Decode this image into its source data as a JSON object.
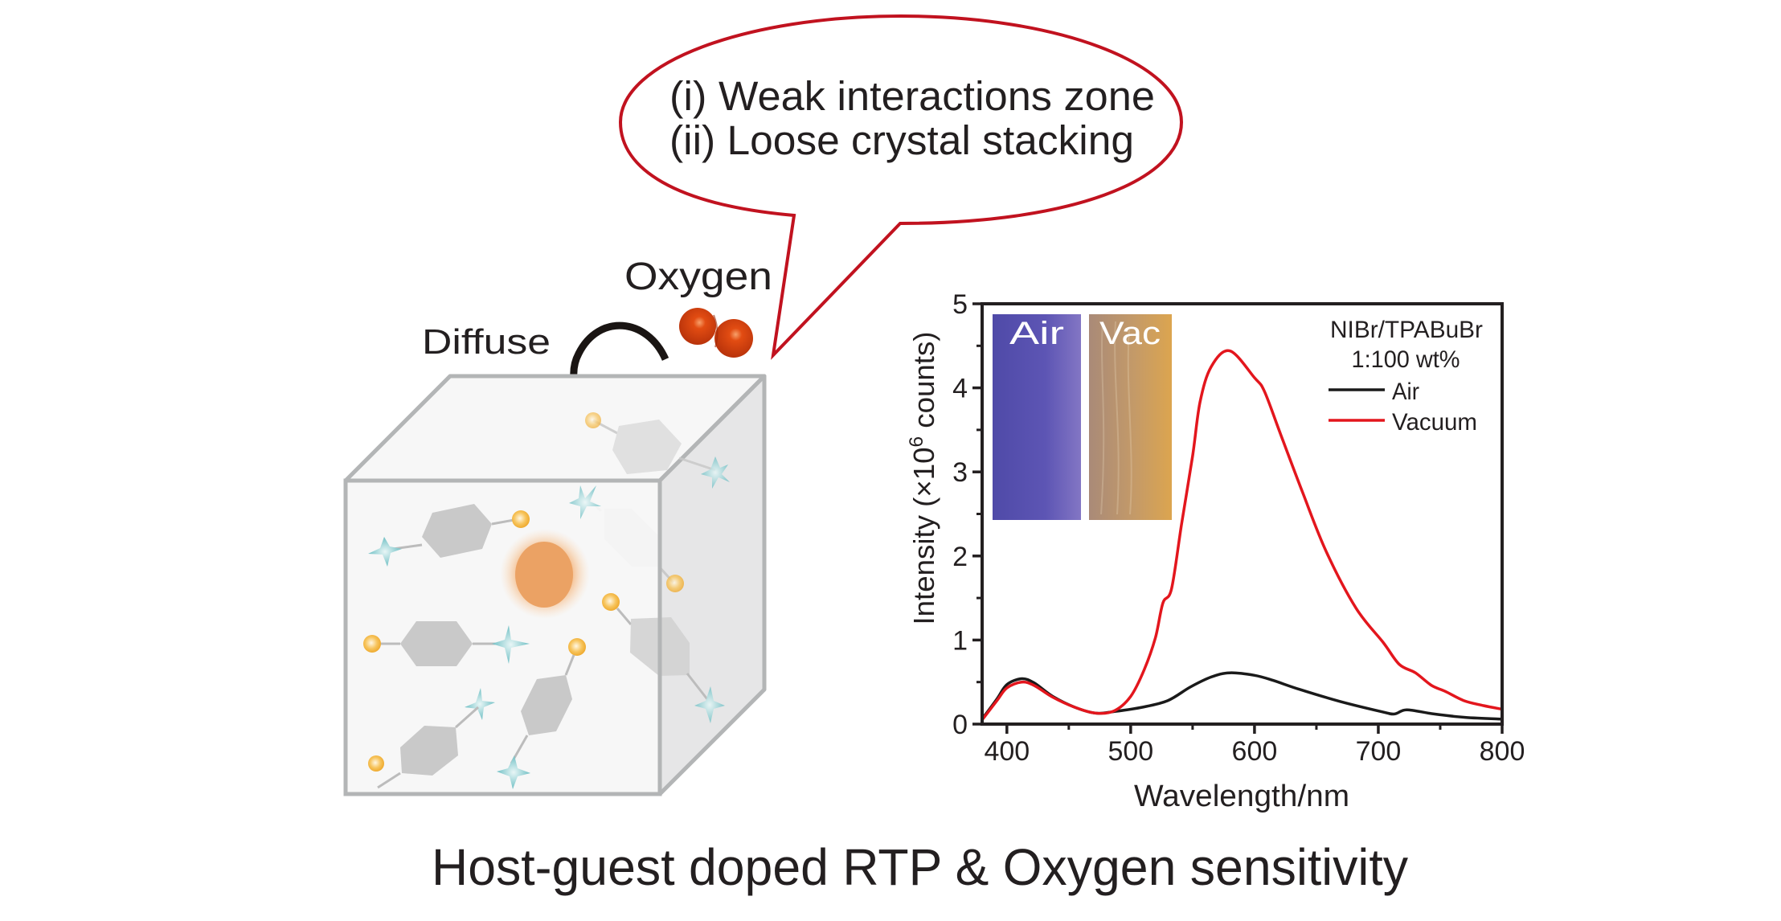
{
  "figure": {
    "caption": "Host-guest doped RTP & Oxygen sensitivity"
  },
  "bubble": {
    "line1": "(i) Weak interactions zone",
    "line2": "(ii) Loose crystal stacking",
    "outline_color": "#c1121f"
  },
  "cube_diagram": {
    "oxygen_label": "Oxygen",
    "diffuse_label": "Diffuse",
    "oxygen_color": "#d9420f",
    "emitter_color": "#eba264",
    "guest_atom_color": "#f2b23a",
    "host_star_color": "#7fc7cb",
    "ring_color": "#c4c4c4",
    "icons": [
      "oxygen-molecule-icon",
      "diffuse-arrow-icon",
      "cube-icon",
      "emitter-glow-icon",
      "molecule-icon"
    ]
  },
  "inset": {
    "air_label": "Air",
    "vac_label": "Vac",
    "air_color": "#5b53b2",
    "vac_color": "#c49a68"
  },
  "chart_data": {
    "type": "line",
    "title": "",
    "xlabel": "Wavelength/nm",
    "ylabel_prefix": "Intensity (",
    "ylabel_times": "×",
    "ylabel_base": "10",
    "ylabel_exp": "6",
    "ylabel_suffix": " counts)",
    "xlim": [
      380,
      800
    ],
    "ylim": [
      0,
      5
    ],
    "xticks": [
      400,
      500,
      600,
      700,
      800
    ],
    "xtick_labels": [
      "400",
      "500",
      "600",
      "700",
      "800"
    ],
    "x_minor_step": 50,
    "yticks": [
      0,
      1,
      2,
      3,
      4,
      5
    ],
    "ytick_labels": [
      "0",
      "1",
      "2",
      "3",
      "4",
      "5"
    ],
    "y_minor_step": 0.5,
    "grid": false,
    "legend": {
      "placement": "top-right",
      "title_line1": "NIBr/TPABuBr",
      "title_line2": "1:100 wt%"
    },
    "series": [
      {
        "name": "Air",
        "color": "#1a1a1a",
        "x": [
          380,
          392,
          400,
          412,
          422,
          437,
          455,
          472,
          487,
          509,
          530,
          548,
          565,
          580,
          600,
          615,
          637,
          669,
          702,
          713,
          723,
          745,
          770,
          799
        ],
        "y": [
          0.06,
          0.3,
          0.47,
          0.54,
          0.49,
          0.33,
          0.2,
          0.13,
          0.15,
          0.2,
          0.28,
          0.44,
          0.56,
          0.61,
          0.58,
          0.52,
          0.41,
          0.27,
          0.15,
          0.12,
          0.17,
          0.12,
          0.08,
          0.06
        ]
      },
      {
        "name": "Vacuum",
        "color": "#e3161d",
        "x": [
          380,
          392,
          400,
          412,
          422,
          437,
          455,
          472,
          487,
          500,
          511,
          520,
          526,
          533,
          541,
          550,
          556,
          565,
          580,
          600,
          608,
          621,
          639,
          658,
          682,
          704,
          717,
          730,
          743,
          754,
          769,
          785,
          799
        ],
        "y": [
          0.05,
          0.28,
          0.43,
          0.5,
          0.46,
          0.32,
          0.2,
          0.13,
          0.16,
          0.33,
          0.65,
          1.03,
          1.44,
          1.61,
          2.37,
          3.19,
          3.83,
          4.25,
          4.44,
          4.12,
          3.96,
          3.45,
          2.75,
          2.05,
          1.38,
          0.97,
          0.71,
          0.61,
          0.46,
          0.39,
          0.28,
          0.22,
          0.18
        ]
      }
    ]
  }
}
